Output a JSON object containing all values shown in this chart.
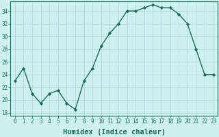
{
  "x": [
    0,
    1,
    2,
    3,
    4,
    5,
    6,
    7,
    8,
    9,
    10,
    11,
    12,
    13,
    14,
    15,
    16,
    17,
    18,
    19,
    20,
    21,
    22,
    23
  ],
  "y": [
    23,
    25,
    21,
    19.5,
    21,
    21.5,
    19.5,
    18.5,
    23,
    25,
    28.5,
    30.5,
    32,
    34,
    34,
    34.5,
    35,
    34.5,
    34.5,
    33.5,
    32,
    28,
    24,
    24
  ],
  "line_color": "#1a6b5a",
  "marker": "D",
  "marker_size": 2.2,
  "bg_color": "#cef0f0",
  "grid_color": "#aad4d4",
  "xlabel": "Humidex (Indice chaleur)",
  "ylim": [
    17.5,
    35.5
  ],
  "yticks": [
    18,
    20,
    22,
    24,
    26,
    28,
    30,
    32,
    34
  ],
  "xticks": [
    0,
    1,
    2,
    3,
    4,
    5,
    6,
    7,
    8,
    9,
    10,
    11,
    12,
    13,
    14,
    15,
    16,
    17,
    18,
    19,
    20,
    21,
    22,
    23
  ],
  "tick_color": "#1a6b5a",
  "tick_fontsize": 5.5,
  "line_width": 1.0,
  "xlabel_fontsize": 7.5,
  "xlim": [
    -0.5,
    23.5
  ]
}
